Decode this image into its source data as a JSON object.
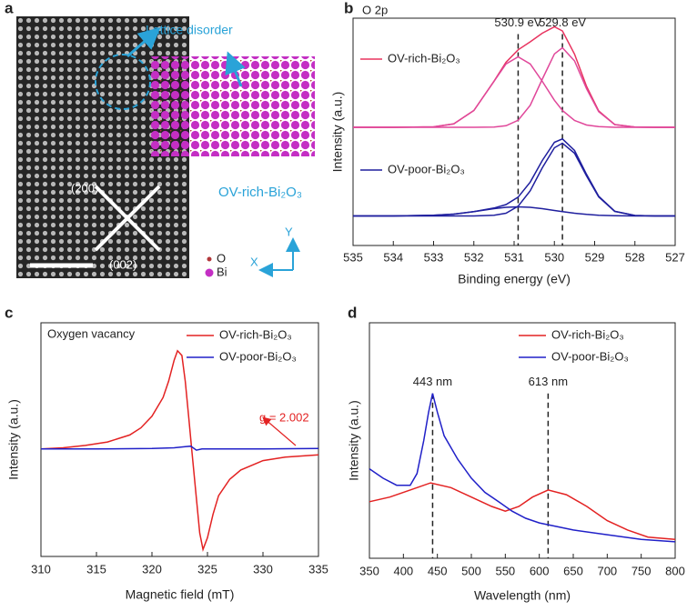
{
  "image_panel": {
    "panel_label": "a",
    "lattice_label": "Lattice disorder",
    "material_label": "OV-rich-Bi₂O₃",
    "plane_1": "(200)",
    "plane_2": "(002)",
    "atom_1": "O",
    "atom_2": "Bi",
    "axis_y": "Y",
    "axis_x": "X"
  },
  "chart_data": [
    {
      "type": "line",
      "panel_label": "b",
      "title": "O 2p",
      "x_label": "Binding energy (eV)",
      "y_label": "Intensity (a.u.)",
      "xlim": [
        535,
        527
      ],
      "xticks": [
        535,
        534,
        533,
        532,
        531,
        530,
        529,
        528,
        527
      ],
      "ylim": [
        0,
        1
      ],
      "legend": "inline",
      "x": [
        535,
        534,
        533,
        532.5,
        532,
        531.5,
        531.2,
        530.9,
        530.6,
        530.3,
        530,
        529.8,
        529.5,
        529.2,
        528.9,
        528.5,
        528,
        527.5,
        527
      ],
      "annotations": [
        {
          "text": "530.9 eV",
          "x": 530.9
        },
        {
          "text": "529.8 eV",
          "x": 529.8
        }
      ],
      "series": [
        {
          "name": "OV-rich-Bi₂O₃",
          "color": "#e8335f",
          "values": [
            0.52,
            0.52,
            0.522,
            0.535,
            0.594,
            0.723,
            0.806,
            0.861,
            0.896,
            0.934,
            0.962,
            0.944,
            0.842,
            0.7,
            0.592,
            0.532,
            0.521,
            0.52,
            0.52
          ]
        },
        {
          "color": "#e0479a",
          "values": [
            0.52,
            0.52,
            0.522,
            0.535,
            0.594,
            0.722,
            0.799,
            0.83,
            0.799,
            0.722,
            0.639,
            0.594,
            0.55,
            0.53,
            0.523,
            0.52,
            0.52,
            0.52,
            0.52
          ]
        },
        {
          "color": "#e0479a",
          "values": [
            0.52,
            0.52,
            0.52,
            0.52,
            0.52,
            0.521,
            0.527,
            0.551,
            0.617,
            0.732,
            0.843,
            0.87,
            0.812,
            0.69,
            0.589,
            0.532,
            0.521,
            0.52,
            0.52
          ]
        },
        {
          "name": "OV-poor-Bi₂O₃",
          "color": "#1f1f9e",
          "values": [
            0.13,
            0.13,
            0.133,
            0.138,
            0.149,
            0.165,
            0.18,
            0.213,
            0.279,
            0.374,
            0.454,
            0.469,
            0.418,
            0.313,
            0.217,
            0.151,
            0.132,
            0.13,
            0.13
          ]
        },
        {
          "color": "#1f1f9e",
          "values": [
            0.13,
            0.13,
            0.133,
            0.138,
            0.149,
            0.162,
            0.168,
            0.17,
            0.168,
            0.162,
            0.154,
            0.149,
            0.142,
            0.137,
            0.133,
            0.131,
            0.13,
            0.13,
            0.13
          ]
        },
        {
          "color": "#1f1f9e",
          "values": [
            0.13,
            0.13,
            0.13,
            0.13,
            0.13,
            0.133,
            0.142,
            0.173,
            0.241,
            0.342,
            0.43,
            0.45,
            0.406,
            0.306,
            0.214,
            0.15,
            0.132,
            0.13,
            0.13
          ]
        }
      ]
    },
    {
      "type": "line",
      "panel_label": "c",
      "title": "Oxygen vacancy",
      "x_label": "Magnetic field (mT)",
      "y_label": "Intensity (a.u.)",
      "xlim": [
        310,
        335
      ],
      "xticks": [
        310,
        315,
        320,
        325,
        330,
        335
      ],
      "ylim": [
        0,
        1
      ],
      "legend": "upper right",
      "annotations": [
        {
          "text": "g = 2.002"
        }
      ],
      "series": [
        {
          "name": "OV-rich-Bi₂O₃",
          "color": "#e32222",
          "x": [
            310,
            312,
            314,
            316,
            318,
            319,
            320,
            321,
            321.5,
            322,
            322.3,
            322.7,
            323,
            323.3,
            323.6,
            324,
            324.3,
            324.6,
            325,
            325.5,
            326,
            327,
            328,
            330,
            332,
            335
          ],
          "values": [
            0.46,
            0.465,
            0.475,
            0.49,
            0.52,
            0.55,
            0.6,
            0.68,
            0.75,
            0.84,
            0.88,
            0.86,
            0.75,
            0.6,
            0.45,
            0.25,
            0.1,
            0.03,
            0.08,
            0.18,
            0.26,
            0.33,
            0.37,
            0.41,
            0.425,
            0.435
          ]
        },
        {
          "name": "OV-poor-Bi₂O₃",
          "color": "#2020c8",
          "x": [
            310,
            315,
            320,
            322,
            323,
            323.5,
            324,
            324.5,
            326,
            330,
            335
          ],
          "values": [
            0.46,
            0.46,
            0.462,
            0.465,
            0.47,
            0.472,
            0.455,
            0.46,
            0.46,
            0.46,
            0.462
          ]
        }
      ]
    },
    {
      "type": "line",
      "panel_label": "d",
      "x_label": "Wavelength (nm)",
      "y_label": "Intensity (a.u.)",
      "xlim": [
        350,
        800
      ],
      "xticks": [
        350,
        400,
        450,
        500,
        550,
        600,
        650,
        700,
        750,
        800
      ],
      "ylim": [
        0,
        1
      ],
      "legend": "upper right",
      "annotations": [
        {
          "text": "443 nm",
          "x": 443
        },
        {
          "text": "613 nm",
          "x": 613
        }
      ],
      "series": [
        {
          "name": "OV-rich-Bi₂O₃",
          "color": "#e32222",
          "x": [
            350,
            380,
            410,
            440,
            470,
            500,
            530,
            550,
            570,
            590,
            613,
            640,
            670,
            700,
            730,
            760,
            800
          ],
          "values": [
            0.24,
            0.26,
            0.29,
            0.32,
            0.3,
            0.26,
            0.22,
            0.2,
            0.22,
            0.26,
            0.29,
            0.27,
            0.22,
            0.16,
            0.12,
            0.09,
            0.08
          ]
        },
        {
          "name": "OV-poor-Bi₂O₃",
          "color": "#2020c8",
          "x": [
            350,
            370,
            390,
            410,
            420,
            430,
            437,
            443,
            450,
            460,
            470,
            480,
            500,
            520,
            540,
            560,
            580,
            600,
            650,
            700,
            750,
            800
          ],
          "values": [
            0.38,
            0.34,
            0.31,
            0.31,
            0.36,
            0.5,
            0.62,
            0.7,
            0.62,
            0.52,
            0.47,
            0.42,
            0.34,
            0.28,
            0.24,
            0.2,
            0.17,
            0.15,
            0.12,
            0.1,
            0.08,
            0.07
          ]
        }
      ]
    }
  ]
}
